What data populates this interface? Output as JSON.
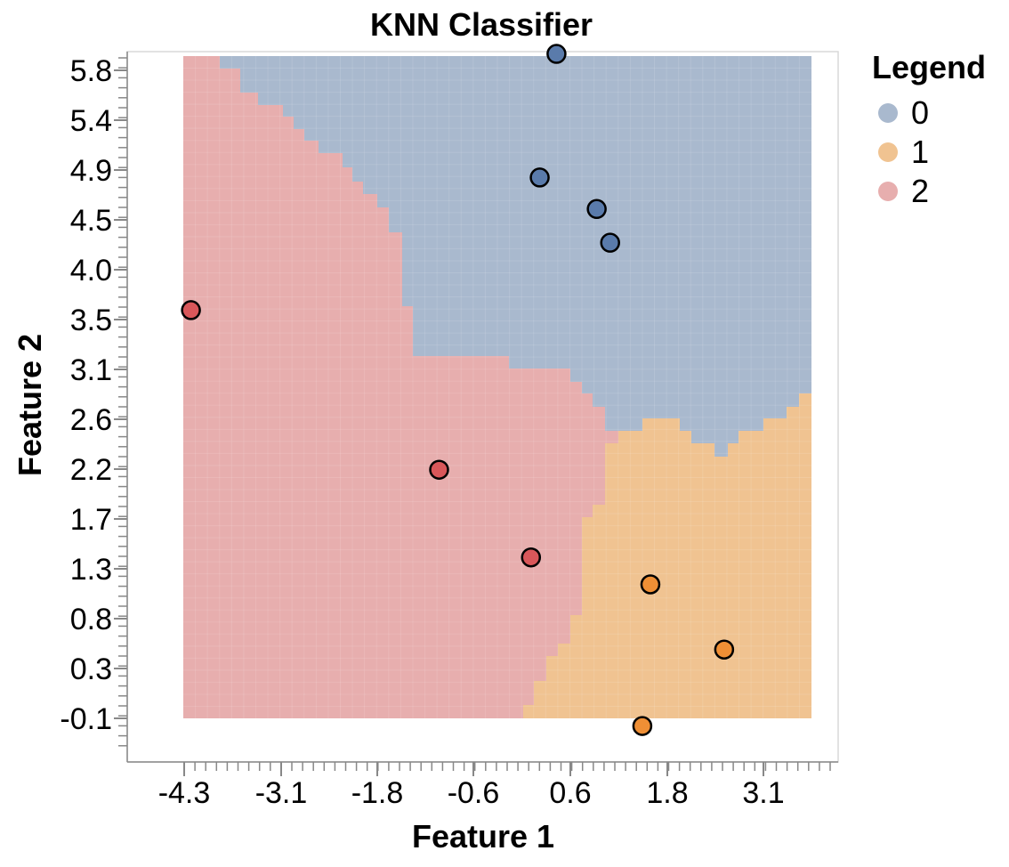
{
  "chart_data": {
    "type": "scatter",
    "title": "KNN Classifier",
    "xlabel": "Feature 1",
    "ylabel": "Feature 2",
    "xlim": [
      -5.2,
      5.4
    ],
    "ylim": [
      -0.52,
      5.8
    ],
    "x_ticks": [
      "-4.3",
      "-3.1",
      "-1.8",
      "-0.6",
      "0.6",
      "1.8",
      "3.1"
    ],
    "y_ticks": [
      "5.8",
      "5.4",
      "4.9",
      "4.5",
      "4.0",
      "3.5",
      "3.1",
      "2.6",
      "2.2",
      "1.7",
      "1.3",
      "0.8",
      "0.3",
      "-0.1"
    ],
    "legend": {
      "title": "Legend",
      "placement": "right",
      "entries": [
        {
          "label": "0",
          "color": "#a9b9ce"
        },
        {
          "label": "1",
          "color": "#f0c391"
        },
        {
          "label": "2",
          "color": "#e7aeae"
        }
      ]
    },
    "class_colors": {
      "0": {
        "region": "#a9b9ce",
        "point": "#5a7bab"
      },
      "1": {
        "region": "#f0c391",
        "point": "#ef8f35"
      },
      "2": {
        "region": "#e7aeae",
        "point": "#d9575a"
      }
    },
    "points": [
      {
        "x": 1.2,
        "y": 5.78,
        "class": 0
      },
      {
        "x": 0.95,
        "y": 4.68,
        "class": 0
      },
      {
        "x": 1.8,
        "y": 4.4,
        "class": 0
      },
      {
        "x": 2.0,
        "y": 4.1,
        "class": 0
      },
      {
        "x": -4.25,
        "y": 3.5,
        "class": 2
      },
      {
        "x": -0.55,
        "y": 2.08,
        "class": 2
      },
      {
        "x": 0.82,
        "y": 1.3,
        "class": 2
      },
      {
        "x": 2.6,
        "y": 1.06,
        "class": 1
      },
      {
        "x": 3.7,
        "y": 0.48,
        "class": 1
      },
      {
        "x": 2.48,
        "y": -0.2,
        "class": 1
      }
    ],
    "regions": {
      "x_range": [
        -4.45,
        4.15
      ],
      "y_range": [
        -0.1,
        6.0
      ],
      "x_breaks_at_class2_top": [
        -4.2,
        -3.75,
        -3.4,
        -3.15,
        -2.9,
        -2.6,
        -2.4,
        -2.2,
        -1.95,
        -1.85,
        -1.65,
        -1.45,
        -1.4,
        -1.25,
        -1.1,
        -1.05
      ],
      "y_breaks_at_class2_top": [
        6.0,
        5.85,
        5.7,
        5.55,
        5.4,
        5.3,
        5.15,
        5.0,
        4.85,
        4.7,
        4.55,
        4.35,
        4.1,
        3.9,
        3.5,
        3.2
      ]
    }
  }
}
